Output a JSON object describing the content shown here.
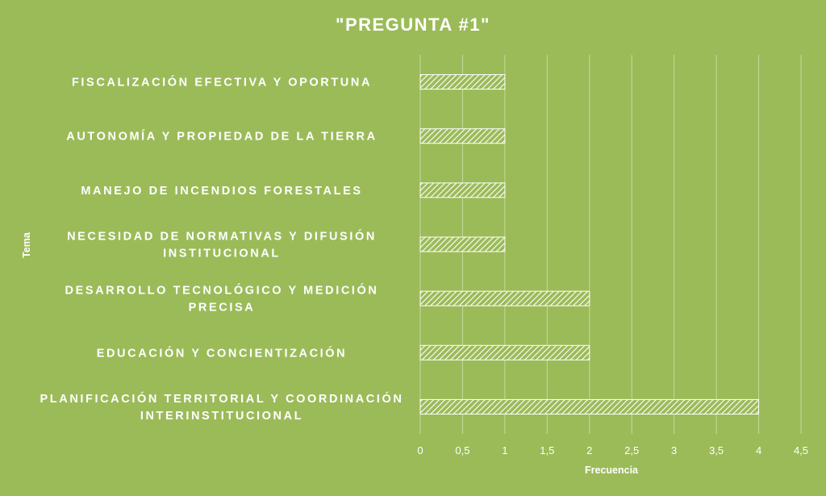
{
  "chart_data": {
    "type": "bar",
    "orientation": "horizontal",
    "title": "\"PREGUNTA #1\"",
    "xlabel": "Frecuencia",
    "ylabel": "Tema",
    "categories": [
      "FISCALIZACIÓN EFECTIVA Y OPORTUNA",
      "AUTONOMÍA Y PROPIEDAD DE LA TIERRA",
      "MANEJO DE INCENDIOS FORESTALES",
      "NECESIDAD DE NORMATIVAS Y DIFUSIÓN INSTITUCIONAL",
      "DESARROLLO TECNOLÓGICO Y MEDICIÓN PRECISA",
      "EDUCACIÓN Y CONCIENTIZACIÓN",
      "PLANIFICACIÓN TERRITORIAL Y COORDINACIÓN INTERINSTITUCIONAL"
    ],
    "category_lines": [
      [
        "FISCALIZACIÓN EFECTIVA Y OPORTUNA"
      ],
      [
        "AUTONOMÍA Y PROPIEDAD DE LA TIERRA"
      ],
      [
        "MANEJO DE INCENDIOS FORESTALES"
      ],
      [
        "NECESIDAD DE NORMATIVAS Y DIFUSIÓN",
        "INSTITUCIONAL"
      ],
      [
        "DESARROLLO TECNOLÓGICO Y MEDICIÓN",
        "PRECISA"
      ],
      [
        "EDUCACIÓN Y CONCIENTIZACIÓN"
      ],
      [
        "PLANIFICACIÓN TERRITORIAL Y COORDINACIÓN",
        "INTERINSTITUCIONAL"
      ]
    ],
    "values": [
      1,
      1,
      1,
      1,
      2,
      2,
      4
    ],
    "xlim": [
      0,
      4.5
    ],
    "xticks": [
      0,
      0.5,
      1,
      1.5,
      2,
      2.5,
      3,
      3.5,
      4,
      4.5
    ],
    "xtick_labels": [
      "0",
      "0,5",
      "1",
      "1,5",
      "2",
      "2,5",
      "3",
      "3,5",
      "4",
      "4,5"
    ],
    "grid": true,
    "legend": "none",
    "colors": {
      "background": "#9bbb59",
      "bar_pattern": "diagonal-hatch",
      "bar_fill": "#ffffff",
      "text": "#ffffff",
      "gridline": "#c6d89b"
    }
  }
}
